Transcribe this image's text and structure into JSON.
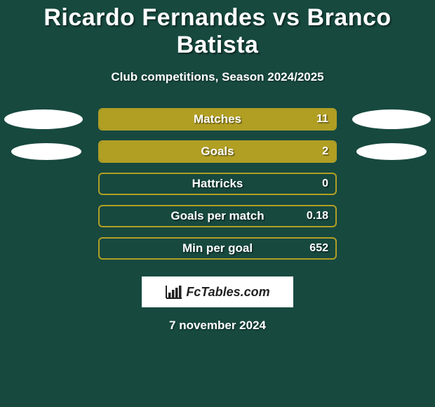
{
  "background_color": "#17493f",
  "text_color": "#ffffff",
  "bar_border_color": "#b19f24",
  "bar_fill_color": "#b19f24",
  "title": "Ricardo Fernandes vs Branco Batista",
  "subtitle": "Club competitions, Season 2024/2025",
  "date": "7 november 2024",
  "logo": {
    "text": "FcTables.com"
  },
  "rows": [
    {
      "label": "Matches",
      "value": "11",
      "fill_pct": 100,
      "left_pill": true,
      "right_pill": true,
      "pill_shift": false
    },
    {
      "label": "Goals",
      "value": "2",
      "fill_pct": 100,
      "left_pill": true,
      "right_pill": true,
      "pill_shift": true
    },
    {
      "label": "Hattricks",
      "value": "0",
      "fill_pct": 0,
      "left_pill": false,
      "right_pill": false,
      "pill_shift": false
    },
    {
      "label": "Goals per match",
      "value": "0.18",
      "fill_pct": 0,
      "left_pill": false,
      "right_pill": false,
      "pill_shift": false
    },
    {
      "label": "Min per goal",
      "value": "652",
      "fill_pct": 0,
      "left_pill": false,
      "right_pill": false,
      "pill_shift": false
    }
  ]
}
